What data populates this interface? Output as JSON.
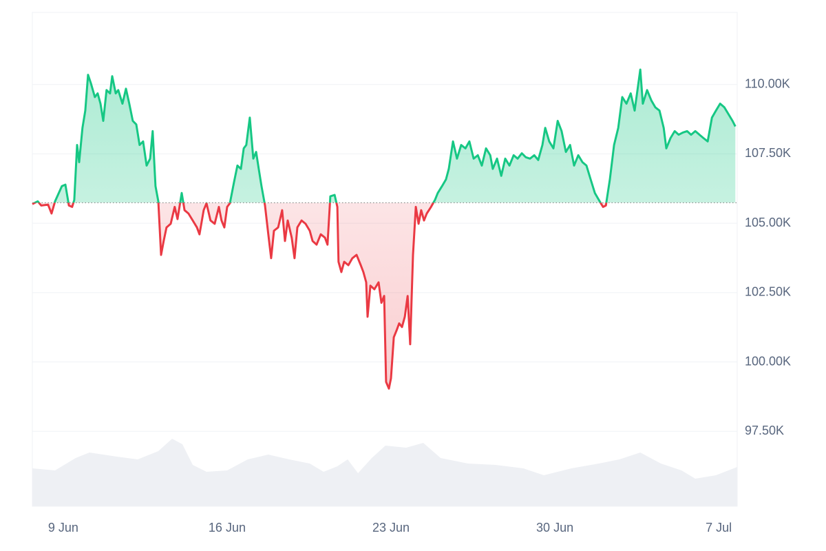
{
  "chart_data": {
    "type": "line",
    "x": [
      -1.32,
      -1.09,
      -0.94,
      -0.65,
      -0.5,
      -0.35,
      -0.06,
      0.09,
      0.24,
      0.38,
      0.47,
      0.59,
      0.68,
      0.82,
      0.94,
      1.06,
      1.18,
      1.35,
      1.47,
      1.59,
      1.71,
      1.85,
      2.0,
      2.09,
      2.24,
      2.35,
      2.53,
      2.68,
      2.82,
      2.97,
      3.12,
      3.26,
      3.41,
      3.56,
      3.71,
      3.82,
      3.94,
      4.06,
      4.18,
      4.29,
      4.41,
      4.59,
      4.76,
      4.88,
      5.06,
      5.18,
      5.35,
      5.53,
      5.71,
      5.82,
      6.0,
      6.12,
      6.29,
      6.47,
      6.65,
      6.76,
      6.88,
      7.0,
      7.12,
      7.29,
      7.44,
      7.59,
      7.71,
      7.82,
      7.97,
      8.12,
      8.24,
      8.35,
      8.47,
      8.62,
      8.76,
      8.88,
      9.0,
      9.18,
      9.35,
      9.47,
      9.59,
      9.76,
      9.88,
      10.0,
      10.18,
      10.35,
      10.53,
      10.65,
      10.82,
      11.0,
      11.18,
      11.29,
      11.41,
      11.59,
      11.71,
      11.76,
      11.88,
      12.0,
      12.18,
      12.35,
      12.53,
      12.71,
      12.82,
      12.94,
      13.0,
      13.12,
      13.29,
      13.47,
      13.59,
      13.71,
      13.79,
      13.91,
      14.0,
      14.12,
      14.24,
      14.35,
      14.47,
      14.59,
      14.71,
      14.82,
      14.94,
      15.06,
      15.18,
      15.29,
      15.41,
      15.53,
      15.71,
      15.88,
      16.0,
      16.18,
      16.35,
      16.47,
      16.65,
      16.82,
      17.0,
      17.18,
      17.35,
      17.53,
      17.71,
      17.88,
      18.06,
      18.24,
      18.35,
      18.53,
      18.71,
      18.88,
      19.06,
      19.24,
      19.41,
      19.59,
      19.76,
      19.94,
      20.12,
      20.29,
      20.47,
      20.59,
      20.76,
      20.94,
      21.12,
      21.29,
      21.47,
      21.65,
      21.82,
      22.0,
      22.18,
      22.35,
      22.53,
      22.71,
      22.88,
      23.06,
      23.18,
      23.35,
      23.53,
      23.71,
      23.88,
      24.06,
      24.24,
      24.41,
      24.53,
      24.65,
      24.76,
      24.94,
      25.12,
      25.29,
      25.47,
      25.65,
      25.76,
      25.94,
      26.12,
      26.29,
      26.47,
      26.65,
      26.82,
      27.0,
      27.18,
      27.35,
      27.53,
      27.71,
      27.88,
      28.06,
      28.24,
      28.41,
      28.59,
      28.71
    ],
    "values": [
      105690,
      105790,
      105640,
      105670,
      105350,
      105790,
      106340,
      106390,
      105640,
      105590,
      105840,
      107820,
      107200,
      108440,
      109060,
      110350,
      110050,
      109550,
      109680,
      109310,
      108690,
      109800,
      109680,
      110300,
      109680,
      109800,
      109310,
      109850,
      109310,
      108690,
      108560,
      107820,
      107950,
      107080,
      107330,
      108320,
      106340,
      105790,
      103860,
      104360,
      104850,
      104980,
      105590,
      105150,
      106090,
      105470,
      105350,
      105100,
      104850,
      104600,
      105470,
      105720,
      105100,
      104980,
      105590,
      105100,
      104850,
      105590,
      105720,
      106460,
      107080,
      106960,
      107700,
      107820,
      108810,
      107330,
      107570,
      106960,
      106340,
      105640,
      104600,
      103740,
      104730,
      104850,
      105470,
      104360,
      105100,
      104480,
      103740,
      104850,
      105100,
      104980,
      104730,
      104360,
      104230,
      104600,
      104480,
      104230,
      105970,
      106020,
      105590,
      103610,
      103240,
      103610,
      103490,
      103740,
      103860,
      103490,
      103240,
      102870,
      101630,
      102750,
      102620,
      102870,
      102130,
      102380,
      99280,
      99040,
      99410,
      100890,
      101140,
      101390,
      101260,
      101630,
      102380,
      100640,
      103860,
      105590,
      104980,
      105470,
      105100,
      105350,
      105590,
      105840,
      106090,
      106340,
      106580,
      106960,
      107950,
      107330,
      107820,
      107700,
      107950,
      107330,
      107450,
      107080,
      107700,
      107450,
      106960,
      107330,
      106710,
      107330,
      107080,
      107450,
      107330,
      107520,
      107380,
      107330,
      107450,
      107280,
      107820,
      108440,
      107950,
      107700,
      108690,
      108320,
      107570,
      107820,
      107080,
      107450,
      107200,
      107080,
      106580,
      106090,
      105840,
      105590,
      105640,
      106580,
      107820,
      108440,
      109550,
      109310,
      109680,
      109060,
      109800,
      110540,
      109310,
      109800,
      109430,
      109180,
      109060,
      108440,
      107700,
      108070,
      108320,
      108190,
      108270,
      108320,
      108190,
      108320,
      108190,
      108070,
      107950,
      108810,
      109060,
      109310,
      109180,
      108940,
      108690,
      108490
    ],
    "baseline": 105740,
    "color_up": "#16c784",
    "color_down": "#ea3943",
    "volume": {
      "color": "#eef0f4",
      "x": [
        -1.32,
        -0.35,
        0.53,
        1.12,
        2.29,
        3.18,
        4.06,
        4.65,
        5.09,
        5.53,
        6.12,
        7.0,
        7.88,
        8.76,
        9.65,
        10.53,
        11.12,
        11.71,
        12.15,
        12.59,
        13.18,
        13.76,
        14.65,
        15.38,
        16.12,
        17.29,
        18.47,
        19.65,
        20.53,
        21.71,
        22.88,
        23.76,
        24.65,
        25.53,
        26.41,
        27.0,
        27.88,
        28.79
      ],
      "values": [
        55,
        52,
        70,
        78,
        72,
        68,
        80,
        98,
        90,
        60,
        50,
        52,
        68,
        75,
        68,
        62,
        50,
        58,
        68,
        48,
        70,
        88,
        85,
        92,
        70,
        62,
        60,
        55,
        45,
        55,
        62,
        68,
        78,
        62,
        52,
        40,
        45,
        57
      ]
    },
    "volume_lim": [
      0,
      120
    ],
    "xlim": [
      -1.32,
      28.79
    ],
    "xticks": [
      {
        "value": 0,
        "label": "9 Jun"
      },
      {
        "value": 7,
        "label": "16 Jun"
      },
      {
        "value": 14,
        "label": "23 Jun"
      },
      {
        "value": 21,
        "label": "30 Jun"
      },
      {
        "value": 28,
        "label": "7 Jul"
      }
    ],
    "ylim": [
      94800,
      112600
    ],
    "yticks": [
      {
        "value": 97500,
        "label": "97.50K"
      },
      {
        "value": 100000,
        "label": "100.00K"
      },
      {
        "value": 102500,
        "label": "102.50K"
      },
      {
        "value": 105000,
        "label": "105.00K"
      },
      {
        "value": 107500,
        "label": "107.50K"
      },
      {
        "value": 110000,
        "label": "110.00K"
      }
    ],
    "grid": true
  }
}
